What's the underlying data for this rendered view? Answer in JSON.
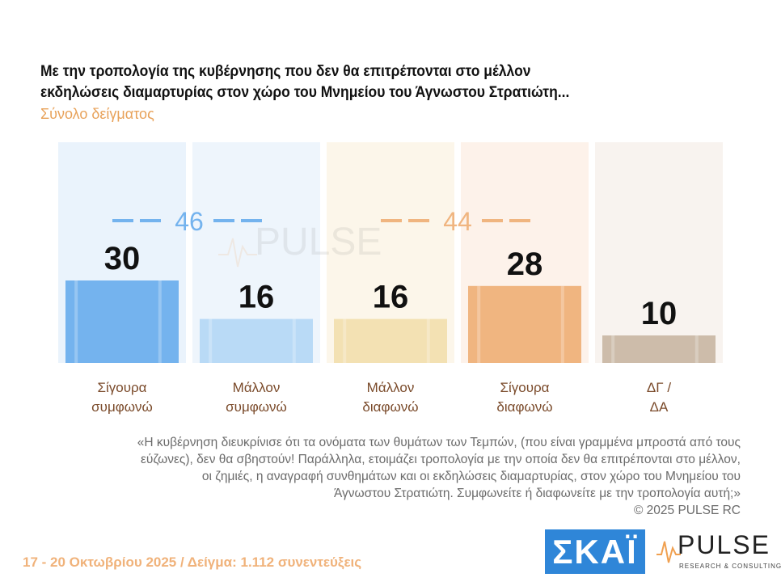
{
  "title_lines": [
    "Με την τροπολογία της κυβέρνησης που δεν θα επιτρέπονται στο μέλλον",
    "εκδηλώσεις διαμαρτυρίας στον χώρο του Μνημείου του Άγνωστου Στρατιώτη..."
  ],
  "subtitle": "Σύνολο δείγματος",
  "chart_data": {
    "type": "bar",
    "categories": [
      [
        "Σίγουρα",
        "συμφωνώ"
      ],
      [
        "Μάλλον",
        "συμφωνώ"
      ],
      [
        "Μάλλον",
        "διαφωνώ"
      ],
      [
        "Σίγουρα",
        "διαφωνώ"
      ],
      [
        "ΔΓ /",
        "ΔΑ"
      ]
    ],
    "values": [
      30,
      16,
      16,
      28,
      10
    ],
    "colors": [
      "#74b3ee",
      "#b9daf6",
      "#f3e1b3",
      "#f0b580",
      "#cdbcaa"
    ],
    "panel_colors": [
      "#eaf3fc",
      "#eef5fc",
      "#fcf6ea",
      "#fdf2ea",
      "#f8f3ef"
    ],
    "groups": [
      {
        "label": "46",
        "color": "#74b3ee",
        "categories": [
          0,
          1
        ]
      },
      {
        "label": "44",
        "color": "#f0b580",
        "categories": [
          2,
          3
        ]
      }
    ],
    "ylim": [
      0,
      60
    ]
  },
  "note_lines": [
    "«Η κυβέρνηση διευκρίνισε ότι τα ονόματα των θυμάτων των Τεμπών, (που είναι γραμμένα μπροστά από τους",
    "εύζωνες), δεν θα σβηστούν! Παράλληλα, ετοιμάζει τροπολογία με την οποία δεν θα επιτρέπονται στο μέλλον,",
    "οι ζημιές, η αναγραφή συνθημάτων και οι εκδηλώσεις διαμαρτυρίας, στον χώρο του Μνημείου του",
    "Άγνωστου Στρατιώτη. Συμφωνείτε ή διαφωνείτε με την τροπολογία αυτή;»",
    "©  2025  PULSE RC"
  ],
  "footer": "17 - 20 Οκτωβρίου 2025  /  Δείγμα:  1.112 συνεντεύξεις",
  "logos": {
    "skai": "ΣΚΑΪ",
    "pulse_word": "PULSE",
    "pulse_tag": "RESEARCH & CONSULTING",
    "watermark_word": "PULSE"
  }
}
